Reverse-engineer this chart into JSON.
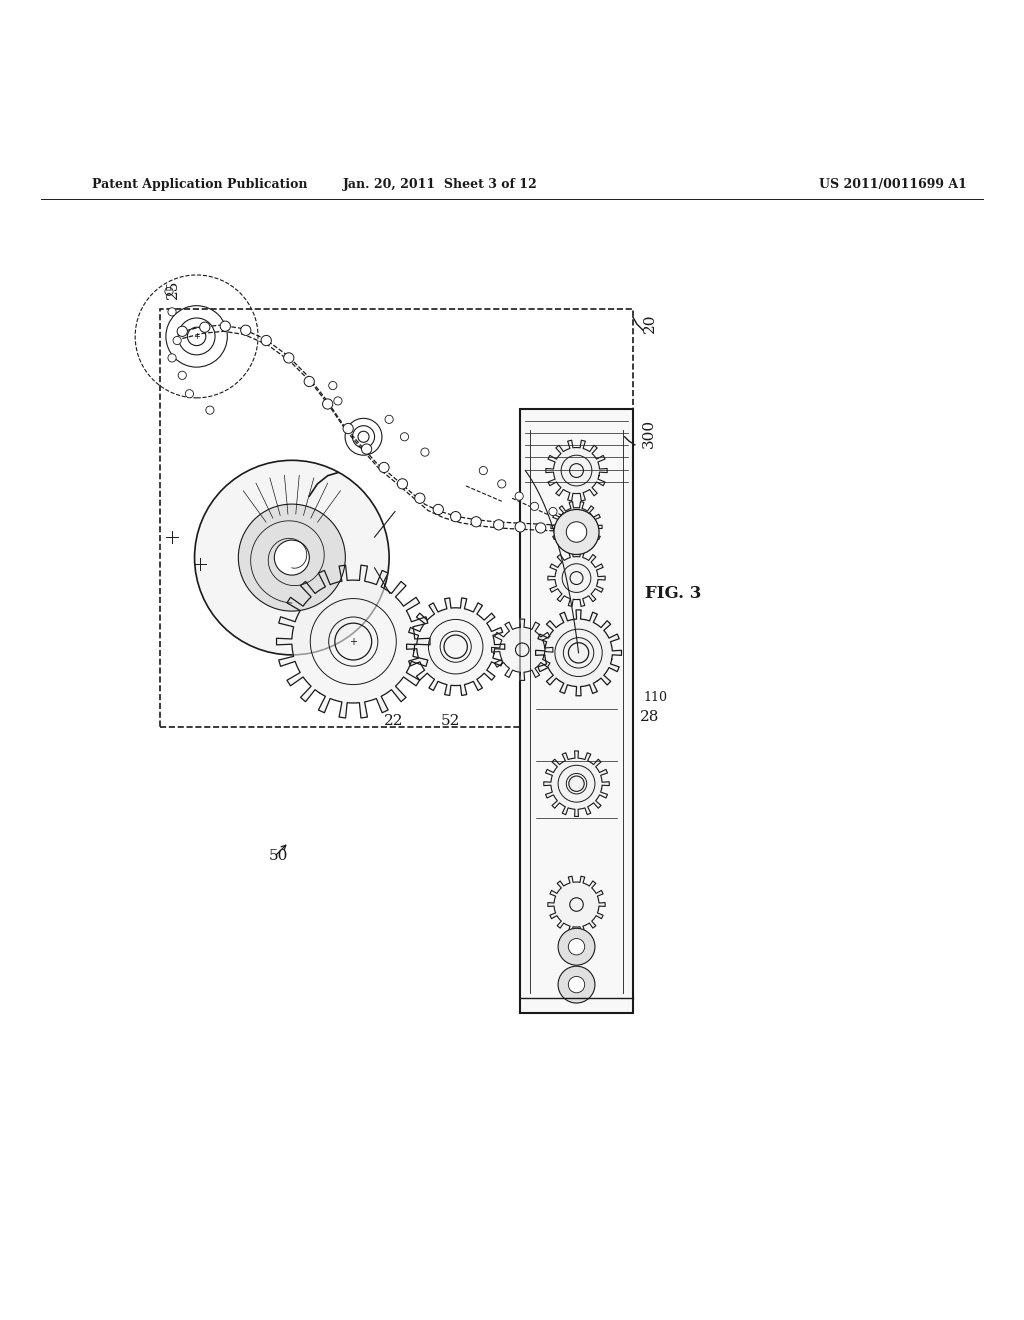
{
  "header_left": "Patent Application Publication",
  "header_middle": "Jan. 20, 2011  Sheet 3 of 12",
  "header_right": "US 2011/0011699 A1",
  "fig_label": "FIG. 3",
  "bg_color": "#ffffff",
  "line_color": "#1a1a1a",
  "label_fontsize": 11,
  "label_fontsize_small": 9,
  "header_fontsize": 9,
  "fig_fontsize": 12
}
